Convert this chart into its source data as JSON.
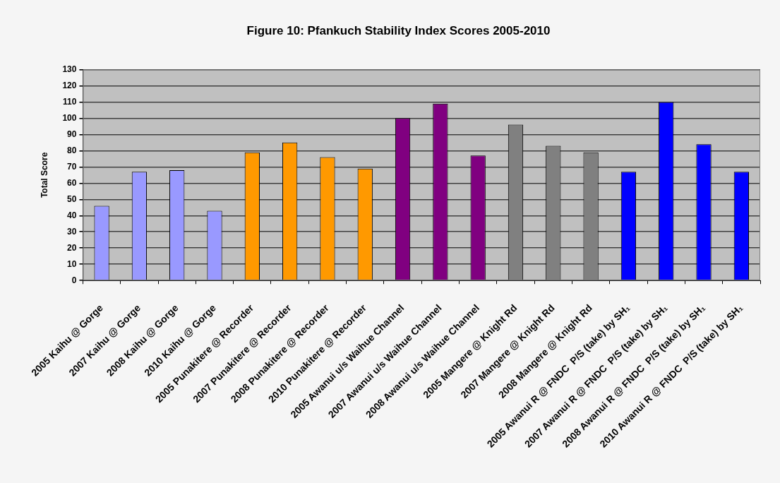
{
  "chart_data": {
    "type": "bar",
    "title": "Figure 10: Pfankuch Stability Index Scores 2005-2010",
    "ylabel": "Total Score",
    "categories": [
      "2005 Kaihu @ Gorge",
      "2007 Kaihu @ Gorge",
      "2008 Kaihu @ Gorge",
      "2010 Kaihu @ Gorge",
      "2005 Punakitere @ Recorder",
      "2007 Punakitere @ Recorder",
      "2008 Punakitere @ Recorder",
      "2010 Punakitere @ Recorder",
      "2005 Awanui u/s Waihue Channel",
      "2007 Awanui u/s Waihue Channel",
      "2008 Awanui u/s Waihue Channel",
      "2005 Mangere @ Knight Rd",
      "2007 Mangere @ Knight Rd",
      "2008 Mangere @ Knight Rd",
      "2005 Awanui R @ FNDC  P/S (take) by SH₁",
      "2007 Awanui R @ FNDC  P/S (take) by SH₁",
      "2008 Awanui R @ FNDC  P/S (take) by SH₁",
      "2010 Awanui R @ FNDC  P/S (take) by SH₁"
    ],
    "values": [
      46,
      67,
      68,
      43,
      79,
      85,
      76,
      69,
      100,
      109,
      77,
      96,
      83,
      79,
      67,
      110,
      84,
      67
    ],
    "colors": [
      "#9999ff",
      "#9999ff",
      "#9999ff",
      "#9999ff",
      "#ff9900",
      "#ff9900",
      "#ff9900",
      "#ff9900",
      "#800080",
      "#800080",
      "#800080",
      "#808080",
      "#808080",
      "#808080",
      "#0000ff",
      "#0000ff",
      "#0000ff",
      "#0000ff"
    ],
    "ylim": [
      0,
      130
    ],
    "yticks": [
      0,
      10,
      20,
      30,
      40,
      50,
      60,
      70,
      80,
      90,
      100,
      110,
      120,
      130
    ],
    "grid": "y",
    "legend": false
  }
}
